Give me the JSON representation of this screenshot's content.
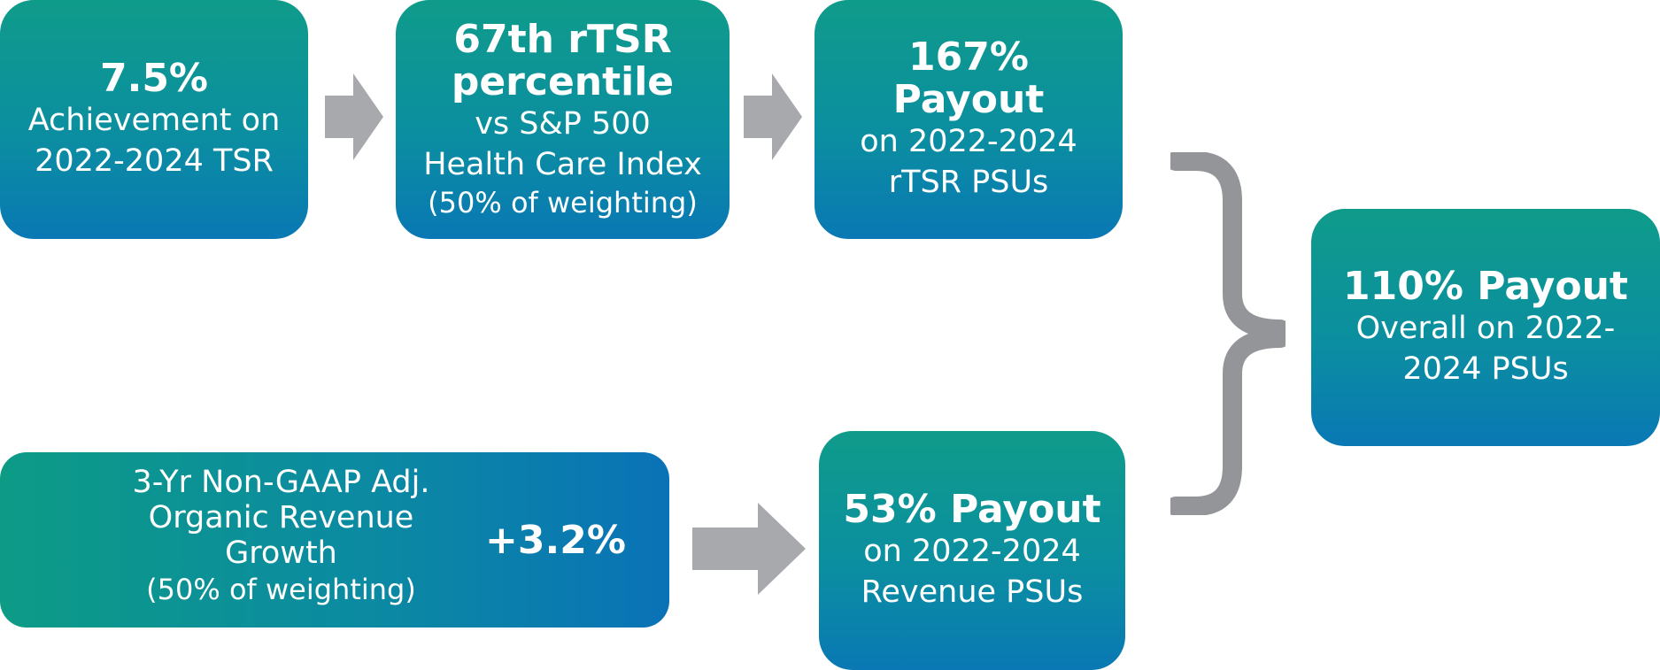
{
  "box_tsr": {
    "headline": "7.5%",
    "line1": "Achievement on",
    "line2": "2022-2024 TSR"
  },
  "box_rank": {
    "headline1": "67th rTSR",
    "headline2": "percentile",
    "line1": "vs S&P 500",
    "line2": "Health Care Index",
    "line3": "(50% of weighting)"
  },
  "box_rtsr_payout": {
    "headline1": "167%",
    "headline2": "Payout",
    "line1": "on 2022-2024",
    "line2": "rTSR PSUs"
  },
  "box_overall": {
    "headline": "110% Payout",
    "line1": "Overall on 2022-",
    "line2": "2024 PSUs"
  },
  "box_revenue": {
    "line1": "3-Yr Non-GAAP Adj.",
    "line2": "Organic Revenue",
    "line3": "Growth",
    "line4": "(50% of weighting)",
    "value": "+3.2%"
  },
  "box_revenue_payout": {
    "headline": "53% Payout",
    "line1": "on 2022-2024",
    "line2": "Revenue PSUs"
  },
  "colors": {
    "teal": "#0f9b8a",
    "blue": "#0a78b4",
    "arrow_gray": "#a7a9ac",
    "brace_gray": "#939598"
  },
  "icons": [
    "right-arrow-icon",
    "right-brace-icon"
  ]
}
